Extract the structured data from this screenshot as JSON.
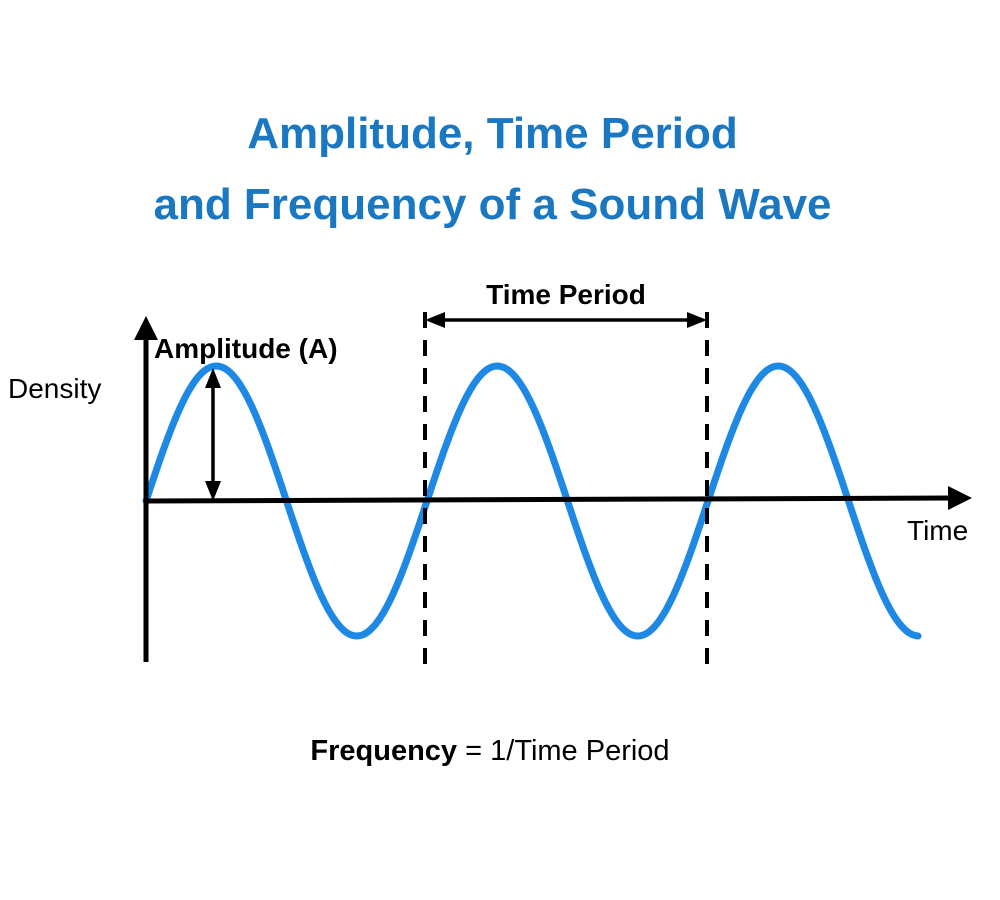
{
  "title": {
    "line1": "Amplitude, Time Period",
    "line2": "and Frequency of a Sound Wave"
  },
  "labels": {
    "y_axis": "Density",
    "x_axis": "Time",
    "amplitude": "Amplitude (A)",
    "time_period": "Time Period"
  },
  "formula": {
    "term": "Frequency",
    "rest": " = 1/Time Period"
  },
  "colors": {
    "title": "#1a78c2",
    "wave": "#1e88e5",
    "axes": "#000000"
  },
  "wave": {
    "cycles_shown": 2.75,
    "period_markers_at_cycle": [
      1,
      2
    ]
  }
}
